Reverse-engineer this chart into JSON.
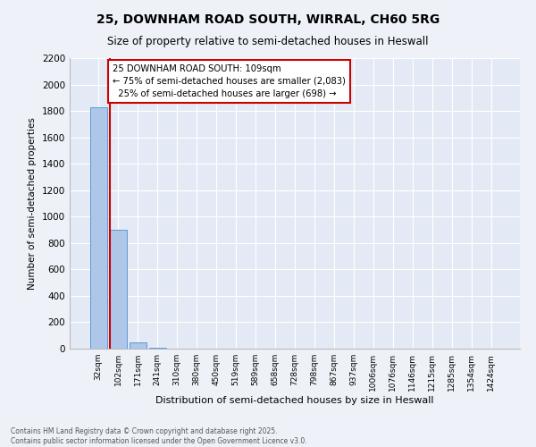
{
  "title_line1": "25, DOWNHAM ROAD SOUTH, WIRRAL, CH60 5RG",
  "title_line2": "Size of property relative to semi-detached houses in Heswall",
  "xlabel": "Distribution of semi-detached houses by size in Heswall",
  "ylabel": "Number of semi-detached properties",
  "categories": [
    "32sqm",
    "102sqm",
    "171sqm",
    "241sqm",
    "310sqm",
    "380sqm",
    "450sqm",
    "519sqm",
    "589sqm",
    "658sqm",
    "728sqm",
    "798sqm",
    "867sqm",
    "937sqm",
    "1006sqm",
    "1076sqm",
    "1146sqm",
    "1215sqm",
    "1285sqm",
    "1354sqm",
    "1424sqm"
  ],
  "values": [
    1830,
    900,
    50,
    5,
    0,
    0,
    0,
    0,
    0,
    0,
    0,
    0,
    0,
    0,
    0,
    0,
    0,
    0,
    0,
    0,
    0
  ],
  "bar_color": "#aec6e8",
  "bar_edge_color": "#5b9bd5",
  "property_label": "25 DOWNHAM ROAD SOUTH: 109sqm",
  "smaller_pct": "75% of semi-detached houses are smaller (2,083)",
  "larger_pct": "25% of semi-detached houses are larger (698)",
  "red_line_color": "#cc0000",
  "annotation_box_color": "#cc0000",
  "ylim": [
    0,
    2200
  ],
  "yticks": [
    0,
    200,
    400,
    600,
    800,
    1000,
    1200,
    1400,
    1600,
    1800,
    2000,
    2200
  ],
  "bg_color": "#eef2f8",
  "plot_bg_color": "#e4eaf5",
  "footer_line1": "Contains HM Land Registry data © Crown copyright and database right 2025.",
  "footer_line2": "Contains public sector information licensed under the Open Government Licence v3.0."
}
